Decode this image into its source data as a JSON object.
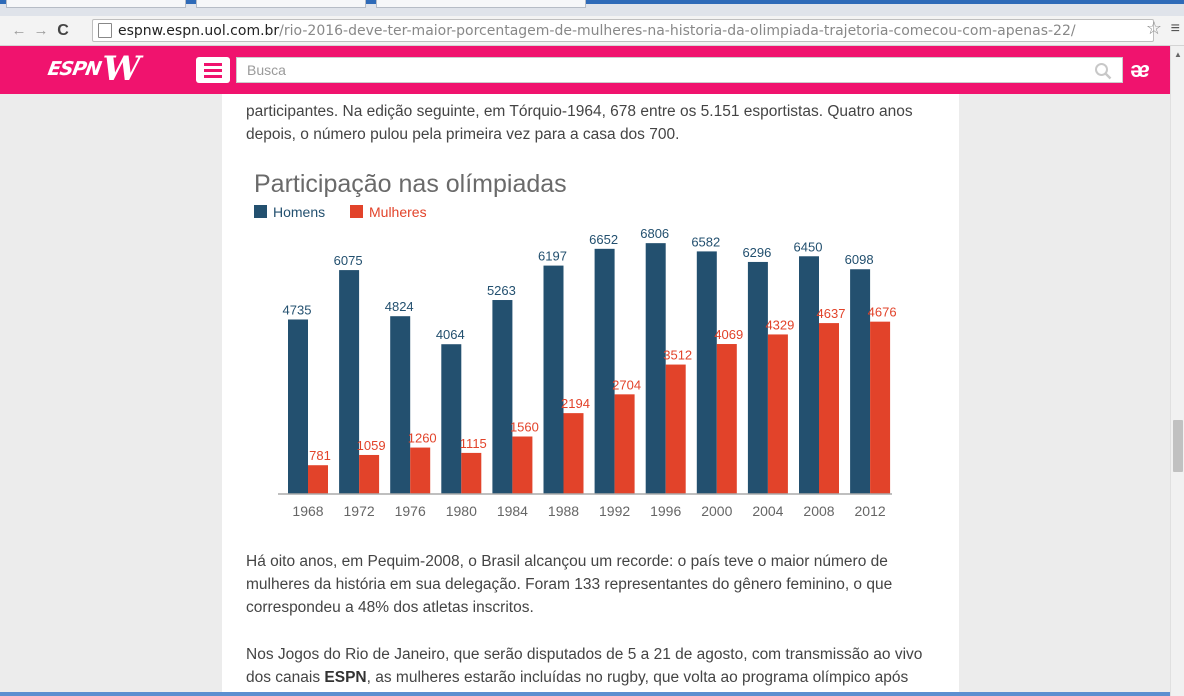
{
  "browser": {
    "url_host": "espnw.espn.uol.com.br",
    "url_path": "/rio-2016-deve-ter-maior-porcentagem-de-mulheres-na-historia-da-olimpiada-trajetoria-comecou-com-apenas-22/"
  },
  "header": {
    "logo_espn": "ESPN",
    "logo_w": "W",
    "search_placeholder": "Busca",
    "accent": "#f0136e"
  },
  "article": {
    "para1": "participantes. Na edição seguinte, em Tórquio-1964, 678 entre os 5.151 esportistas. Quatro anos depois, o número pulou pela primeira vez para a casa dos 700.",
    "para2": "Há oito anos, em Pequim-2008, o Brasil alcançou um recorde: o país teve o maior número de mulheres da história em sua delegação. Foram 133 representantes do gênero feminino, o que correspondeu a 48% dos atletas inscritos.",
    "para3_a": "Nos Jogos do Rio de Janeiro, que serão disputados de 5 a 21 de agosto, com transmissão ao vivo dos canais ",
    "para3_b": "ESPN",
    "para3_c": ", as mulheres estarão incluídas no rugby, que volta ao programa olímpico após"
  },
  "chart_data": {
    "type": "bar",
    "title": "Participação nas olímpiadas",
    "legend_position": "top-left",
    "categories": [
      "1968",
      "1972",
      "1976",
      "1980",
      "1984",
      "1988",
      "1992",
      "1996",
      "2000",
      "2004",
      "2008",
      "2012"
    ],
    "series": [
      {
        "name": "Homens",
        "color": "#23506f",
        "values": [
          4735,
          6075,
          4824,
          4064,
          5263,
          6197,
          6652,
          6806,
          6582,
          6296,
          6450,
          6098
        ]
      },
      {
        "name": "Mulheres",
        "color": "#e2432a",
        "values": [
          781,
          1059,
          1260,
          1115,
          1560,
          2194,
          2704,
          3512,
          4069,
          4329,
          4637,
          4676
        ]
      }
    ],
    "ylim": [
      0,
      7000
    ],
    "grid": false
  }
}
